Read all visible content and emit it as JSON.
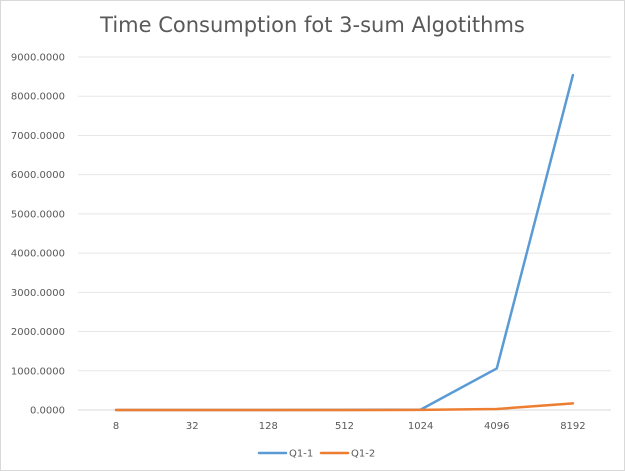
{
  "chart_data": {
    "type": "line",
    "title": "Time Consumption fot 3-sum Algotithms",
    "categories": [
      "8",
      "32",
      "128",
      "512",
      "1024",
      "4096",
      "8192"
    ],
    "series": [
      {
        "name": "Q1-1",
        "color": "#5b9bd5",
        "values": [
          0,
          0,
          0,
          2,
          10,
          1060,
          8540
        ]
      },
      {
        "name": "Q1-2",
        "color": "#ed7d31",
        "values": [
          0,
          0,
          0,
          1,
          2,
          25,
          170
        ]
      }
    ],
    "ylim": [
      0,
      9000
    ],
    "yticks": [
      "0.0000",
      "1000.0000",
      "2000.0000",
      "3000.0000",
      "4000.0000",
      "5000.0000",
      "6000.0000",
      "7000.0000",
      "8000.0000",
      "9000.0000"
    ],
    "grid": true,
    "legend": "bottom"
  }
}
